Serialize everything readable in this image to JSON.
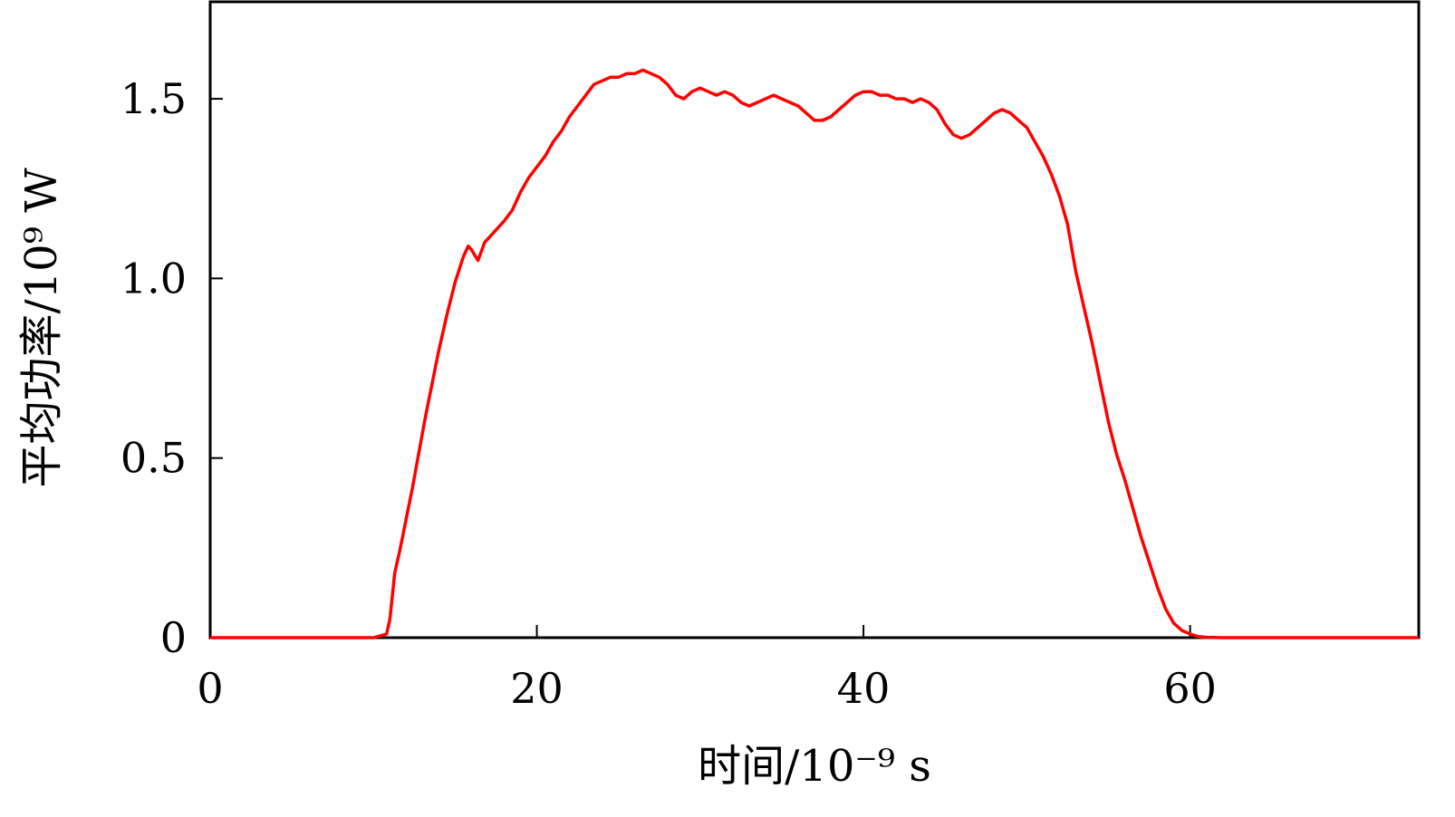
{
  "chart_data": {
    "type": "line",
    "xlabel": "时间/10⁻⁹ s",
    "ylabel": "平均功率/10⁹ W",
    "xlim": [
      0,
      74
    ],
    "ylim": [
      0,
      1.77
    ],
    "xticks": [
      0,
      20,
      40,
      60
    ],
    "xtick_labels": [
      "0",
      "20",
      "40",
      "60"
    ],
    "yticks": [
      0,
      0.5,
      1.0,
      1.5
    ],
    "ytick_labels": [
      "0",
      "0.5",
      "1.0",
      "1.5"
    ],
    "grid": false,
    "legend": "none",
    "series": [
      {
        "color": "#ff0000",
        "x": [
          0,
          2,
          4,
          6,
          8,
          10,
          10.8,
          11,
          11.3,
          11.6,
          12,
          12.4,
          12.8,
          13.2,
          13.6,
          14,
          14.5,
          15,
          15.5,
          15.8,
          16,
          16.4,
          16.8,
          17.2,
          17.6,
          18,
          18.5,
          19,
          19.5,
          20,
          20.5,
          21,
          21.5,
          22,
          22.5,
          23,
          23.5,
          24,
          24.5,
          25,
          25.5,
          26,
          26.5,
          27,
          27.5,
          28,
          28.5,
          29,
          29.5,
          30,
          30.5,
          31,
          31.5,
          32,
          32.5,
          33,
          33.5,
          34,
          34.5,
          35,
          35.5,
          36,
          36.5,
          37,
          37.5,
          38,
          38.5,
          39,
          39.5,
          40,
          40.5,
          41,
          41.5,
          42,
          42.5,
          43,
          43.5,
          44,
          44.5,
          45,
          45.5,
          46,
          46.5,
          47,
          47.5,
          48,
          48.5,
          49,
          49.5,
          50,
          50.5,
          51,
          51.5,
          52,
          52.5,
          53,
          53.5,
          54,
          54.5,
          55,
          55.5,
          56,
          56.5,
          57,
          57.5,
          58,
          58.5,
          59,
          59.5,
          60,
          60.5,
          61,
          62,
          64,
          66,
          68,
          70,
          72,
          74
        ],
        "y": [
          0,
          0,
          0,
          0,
          0,
          0,
          0.01,
          0.05,
          0.18,
          0.24,
          0.33,
          0.42,
          0.52,
          0.62,
          0.71,
          0.8,
          0.9,
          0.99,
          1.06,
          1.09,
          1.08,
          1.05,
          1.1,
          1.12,
          1.14,
          1.16,
          1.19,
          1.24,
          1.28,
          1.31,
          1.34,
          1.38,
          1.41,
          1.45,
          1.48,
          1.51,
          1.54,
          1.55,
          1.56,
          1.56,
          1.57,
          1.57,
          1.58,
          1.57,
          1.56,
          1.54,
          1.51,
          1.5,
          1.52,
          1.53,
          1.52,
          1.51,
          1.52,
          1.51,
          1.49,
          1.48,
          1.49,
          1.5,
          1.51,
          1.5,
          1.49,
          1.48,
          1.46,
          1.44,
          1.44,
          1.45,
          1.47,
          1.49,
          1.51,
          1.52,
          1.52,
          1.51,
          1.51,
          1.5,
          1.5,
          1.49,
          1.5,
          1.49,
          1.47,
          1.43,
          1.4,
          1.39,
          1.4,
          1.42,
          1.44,
          1.46,
          1.47,
          1.46,
          1.44,
          1.42,
          1.38,
          1.34,
          1.29,
          1.23,
          1.15,
          1.02,
          0.92,
          0.82,
          0.71,
          0.6,
          0.51,
          0.44,
          0.36,
          0.28,
          0.21,
          0.14,
          0.08,
          0.04,
          0.02,
          0.01,
          0.003,
          0.001,
          0,
          0,
          0,
          0,
          0,
          0,
          0
        ]
      }
    ]
  }
}
